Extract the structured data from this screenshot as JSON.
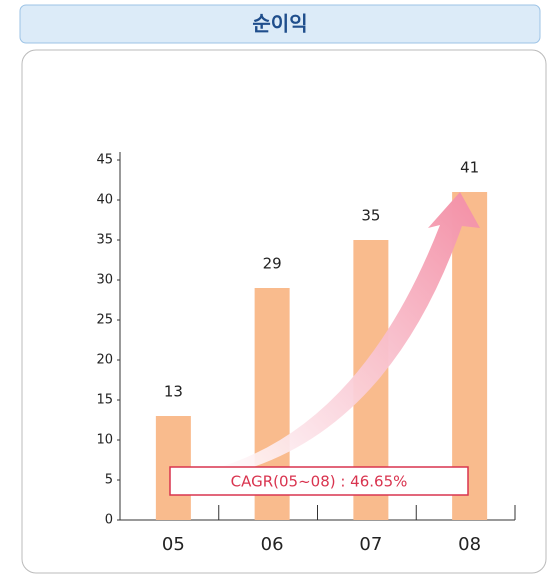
{
  "chart_data": {
    "type": "bar",
    "title": "순이익",
    "categories": [
      "05",
      "06",
      "07",
      "08"
    ],
    "values": [
      13,
      29,
      35,
      41
    ],
    "color": "#f9bb8d",
    "ylim": [
      0,
      45
    ],
    "yticks": [
      0,
      5,
      10,
      15,
      20,
      25,
      30,
      35,
      40,
      45
    ],
    "annotation": "CAGR(05~08) : 46.65%"
  }
}
